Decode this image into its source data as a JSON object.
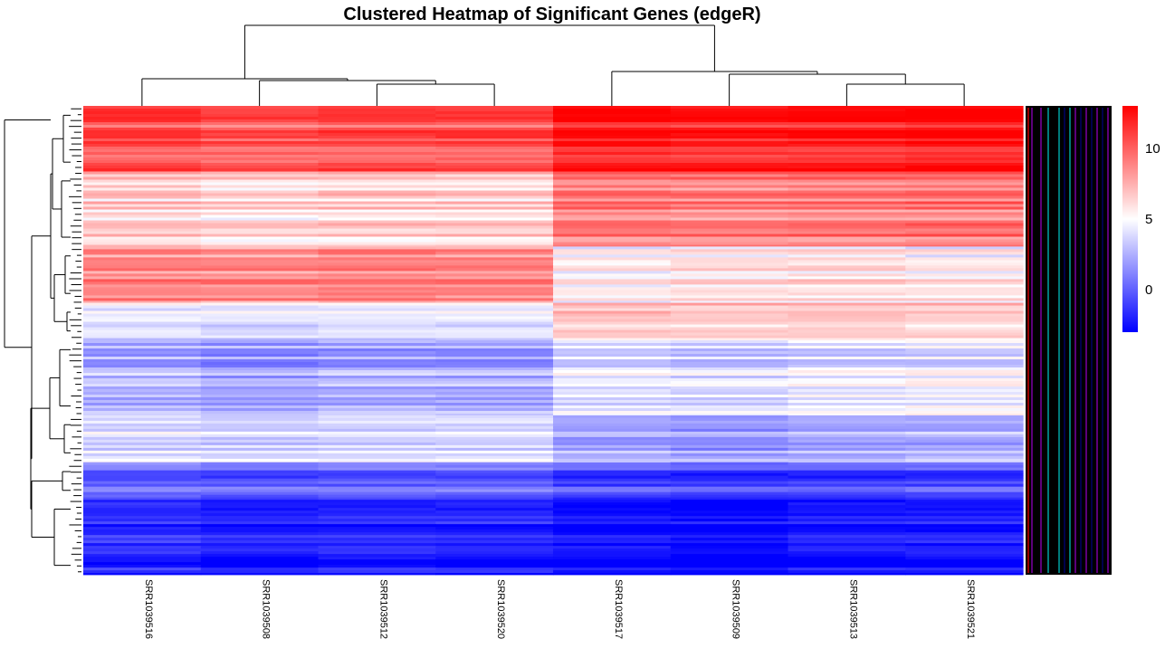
{
  "chart_data": {
    "type": "heatmap",
    "title": "Clustered Heatmap of Significant Genes (edgeR)",
    "columns": [
      "SRR1039516",
      "SRR1039508",
      "SRR1039512",
      "SRR1039520",
      "SRR1039517",
      "SRR1039509",
      "SRR1039513",
      "SRR1039521"
    ],
    "column_groups": [
      [
        "SRR1039516",
        "SRR1039508",
        "SRR1039512",
        "SRR1039520"
      ],
      [
        "SRR1039517",
        "SRR1039509",
        "SRR1039513",
        "SRR1039521"
      ]
    ],
    "color_scale": {
      "min": -3,
      "mid": 5,
      "max": 13,
      "low_color": "#0000ff",
      "mid_color": "#ffffff",
      "high_color": "#ff0000",
      "ticks": [
        0,
        5,
        10
      ]
    },
    "row_blocks": [
      {
        "from": 0.0,
        "to": 0.14,
        "values": [
          10.5,
          10.0,
          10.2,
          10.3,
          12.0,
          11.8,
          11.9,
          12.0
        ]
      },
      {
        "from": 0.14,
        "to": 0.3,
        "values": [
          6.5,
          6.0,
          6.3,
          6.2,
          9.0,
          8.8,
          9.0,
          9.1
        ]
      },
      {
        "from": 0.3,
        "to": 0.42,
        "values": [
          8.5,
          8.3,
          8.6,
          8.4,
          5.0,
          5.5,
          5.6,
          5.2
        ]
      },
      {
        "from": 0.42,
        "to": 0.5,
        "values": [
          4.6,
          4.4,
          4.5,
          4.6,
          7.0,
          6.8,
          6.9,
          6.7
        ]
      },
      {
        "from": 0.5,
        "to": 0.66,
        "values": [
          2.5,
          2.0,
          2.3,
          2.2,
          4.0,
          3.8,
          4.2,
          4.4
        ]
      },
      {
        "from": 0.66,
        "to": 0.76,
        "values": [
          4.2,
          4.0,
          4.1,
          4.2,
          2.5,
          2.2,
          2.6,
          2.8
        ]
      },
      {
        "from": 0.76,
        "to": 0.84,
        "values": [
          0.5,
          0.2,
          0.4,
          0.3,
          -0.5,
          -0.8,
          -0.6,
          -0.4
        ]
      },
      {
        "from": 0.84,
        "to": 1.0,
        "values": [
          -1.5,
          -2.0,
          -1.8,
          -1.9,
          -2.5,
          -2.8,
          -2.3,
          -2.2
        ]
      }
    ],
    "annotation_colors": [
      "#ff0000",
      "#000000",
      "#9900cc",
      "#00cccc",
      "#000080"
    ],
    "row_dendrogram": true,
    "col_dendrogram": true,
    "legend_position": "right"
  }
}
